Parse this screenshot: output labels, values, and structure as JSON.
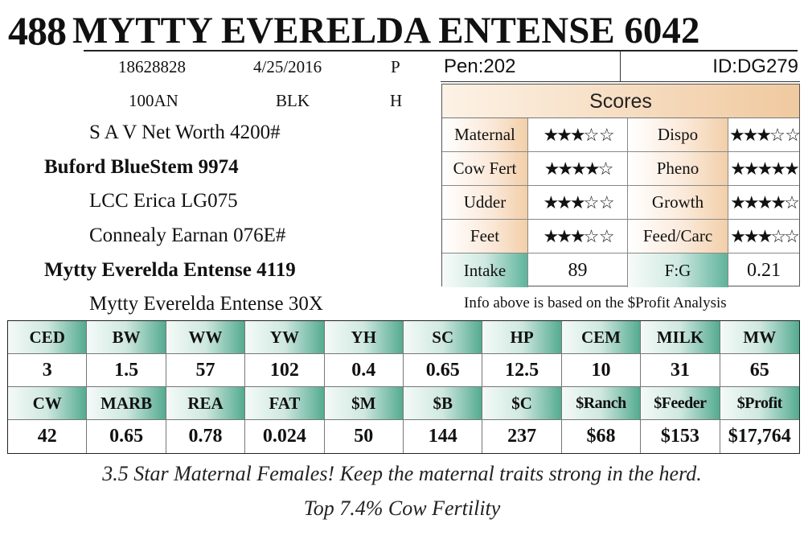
{
  "header": {
    "lot_number": "488",
    "title": "MYTTY EVERELDA ENTENSE 6042"
  },
  "animal": {
    "reg_number": "18628828",
    "birth_date": "4/25/2016",
    "code1": "P",
    "tattoo": "100AN",
    "color": "BLK",
    "code2": "H"
  },
  "pedigree": {
    "sire_sire": "S A V Net Worth 4200#",
    "sire": "Buford BlueStem 9974",
    "sire_dam": "LCC Erica LG075",
    "dam_sire": "Connealy Earnan 076E#",
    "dam": "Mytty Everelda Entense 4119",
    "dam_dam": "Mytty Everelda Entense 30X"
  },
  "pen": {
    "pen_label": "Pen:202",
    "id_label": "ID:DG279"
  },
  "scores": {
    "heading": "Scores",
    "rows": [
      {
        "l1": "Maternal",
        "v1": "★★★☆ ☆",
        "l2": "Dispo",
        "v2": "★★★☆ ☆"
      },
      {
        "l1": "Cow Fert",
        "v1": "★★★★☆",
        "l2": "Pheno",
        "v2": "★★★★★"
      },
      {
        "l1": "Udder",
        "v1": "★★★☆ ☆",
        "l2": "Growth",
        "v2": "★★★★☆"
      },
      {
        "l1": "Feet",
        "v1": "★★★☆ ☆",
        "l2": "Feed/Carc",
        "v2": "★★★☆☆"
      },
      {
        "l1": "Intake",
        "v1": "89",
        "l2": "F:G",
        "v2": "0.21"
      }
    ],
    "note": "Info above is based on the $Profit Analysis"
  },
  "epds": {
    "row1_headers": [
      "CED",
      "BW",
      "WW",
      "YW",
      "YH",
      "SC",
      "HP",
      "CEM",
      "MILK",
      "MW"
    ],
    "row1_values": [
      "3",
      "1.5",
      "57",
      "102",
      "0.4",
      "0.65",
      "12.5",
      "10",
      "31",
      "65"
    ],
    "row2_headers": [
      "CW",
      "MARB",
      "REA",
      "FAT",
      "$M",
      "$B",
      "$C",
      "$Ranch",
      "$Feeder",
      "$Profit"
    ],
    "row2_values": [
      "42",
      "0.65",
      "0.78",
      "0.024",
      "50",
      "144",
      "237",
      "$68",
      "$153",
      "$17,764"
    ]
  },
  "footer": {
    "line1": "3.5 Star Maternal Females! Keep the maternal traits strong in the herd.",
    "line2": "Top 7.4% Cow Fertility"
  }
}
